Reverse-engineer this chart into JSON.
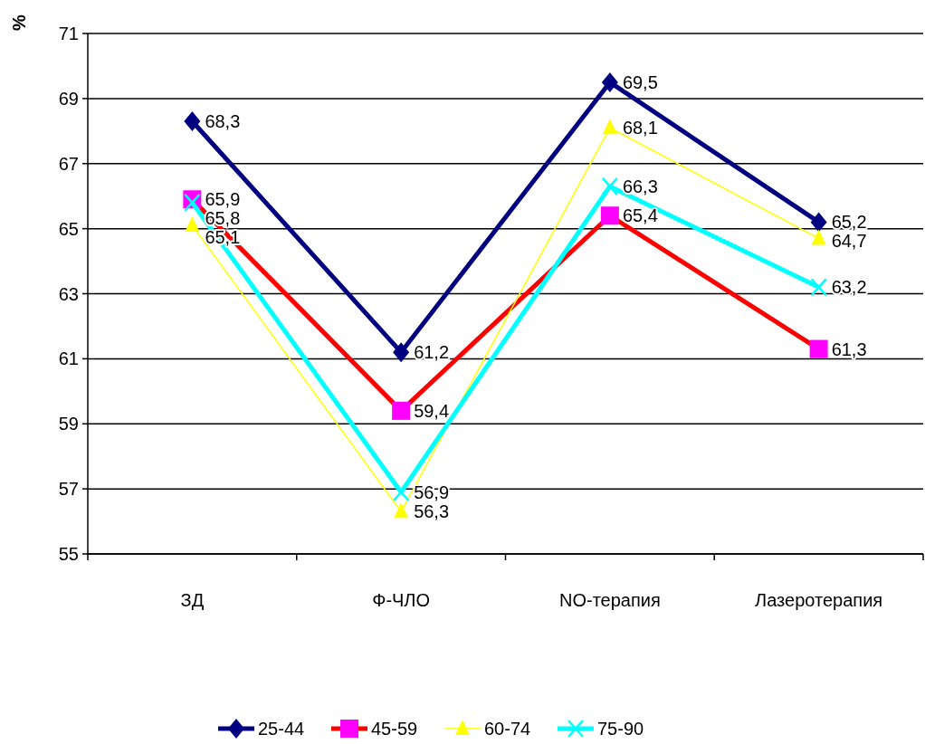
{
  "chart_data": {
    "type": "line",
    "ylabel": "%",
    "categories": [
      "ЗД",
      "Ф-ЧЛО",
      "NO-терапия",
      "Лазеротерапия"
    ],
    "series": [
      {
        "name": "25-44",
        "color": "#000080",
        "marker": "diamond",
        "values": [
          68.3,
          61.2,
          69.5,
          65.2
        ],
        "value_labels": [
          "68,3",
          "61,2",
          "69,5",
          "65,2"
        ]
      },
      {
        "name": "45-59",
        "color": "#ff0000",
        "marker": "square",
        "values": [
          65.9,
          59.4,
          65.4,
          61.3
        ],
        "value_labels": [
          "65,9",
          "59,4",
          "65,4",
          "61,3"
        ]
      },
      {
        "name": "60-74",
        "color": "#ffff00",
        "marker": "triangle",
        "values": [
          65.1,
          56.3,
          68.1,
          64.7
        ],
        "value_labels": [
          "65,1",
          "56,3",
          "68,1",
          "64,7"
        ]
      },
      {
        "name": "75-90",
        "color": "#00ffff",
        "marker": "cross",
        "values": [
          65.8,
          56.9,
          66.3,
          63.2
        ],
        "value_labels": [
          "65,8",
          "56,9",
          "66,3",
          "63,2"
        ]
      }
    ],
    "ylim": [
      55,
      71
    ],
    "yticks": [
      55,
      57,
      59,
      61,
      63,
      65,
      67,
      69,
      71
    ],
    "grid": "y",
    "legend": "bottom"
  }
}
